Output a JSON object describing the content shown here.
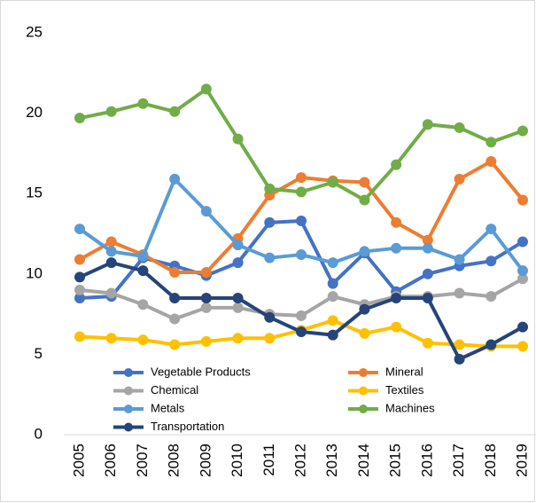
{
  "chart_data": {
    "type": "line",
    "categories": [
      "2005",
      "2006",
      "2007",
      "2008",
      "2009",
      "2010",
      "2011",
      "2012",
      "2013",
      "2014",
      "2015",
      "2016",
      "2017",
      "2018",
      "2019"
    ],
    "series": [
      {
        "name": "Vegetable Products",
        "color": "#4472c4",
        "values": [
          8.5,
          8.6,
          11.0,
          10.5,
          9.9,
          10.7,
          13.2,
          13.3,
          9.4,
          11.3,
          8.9,
          10.0,
          10.5,
          10.8,
          12.0
        ]
      },
      {
        "name": "Mineral",
        "color": "#ed7d31",
        "values": [
          10.9,
          12.0,
          11.2,
          10.1,
          10.1,
          12.2,
          14.9,
          16.0,
          15.8,
          15.7,
          13.2,
          12.1,
          15.9,
          17.0,
          14.6
        ]
      },
      {
        "name": "Chemical",
        "color": "#a5a5a5",
        "values": [
          9.0,
          8.8,
          8.1,
          7.2,
          7.9,
          7.9,
          7.5,
          7.4,
          8.6,
          8.1,
          8.6,
          8.6,
          8.8,
          8.6,
          9.7
        ]
      },
      {
        "name": "Textiles",
        "color": "#ffc000",
        "values": [
          6.1,
          6.0,
          5.9,
          5.6,
          5.8,
          6.0,
          6.0,
          6.5,
          7.1,
          6.3,
          6.7,
          5.7,
          5.6,
          5.5,
          5.5
        ]
      },
      {
        "name": "Metals",
        "color": "#5b9bd5",
        "values": [
          12.8,
          11.4,
          11.1,
          15.9,
          13.9,
          11.8,
          11.0,
          11.2,
          10.7,
          11.4,
          11.6,
          11.6,
          10.9,
          12.8,
          10.2
        ]
      },
      {
        "name": "Machines",
        "color": "#70ad47",
        "values": [
          19.7,
          20.1,
          20.6,
          20.1,
          21.5,
          18.4,
          15.3,
          15.1,
          15.7,
          14.6,
          16.8,
          19.3,
          19.1,
          18.2,
          18.9
        ]
      },
      {
        "name": "Transportation",
        "color": "#264478",
        "values": [
          9.8,
          10.7,
          10.2,
          8.5,
          8.5,
          8.5,
          7.3,
          6.4,
          6.2,
          7.8,
          8.5,
          8.5,
          4.7,
          5.6,
          6.7
        ]
      }
    ],
    "ylim": [
      0,
      25
    ],
    "yticks": [
      0,
      5,
      10,
      15,
      20,
      25
    ],
    "grid": false
  }
}
